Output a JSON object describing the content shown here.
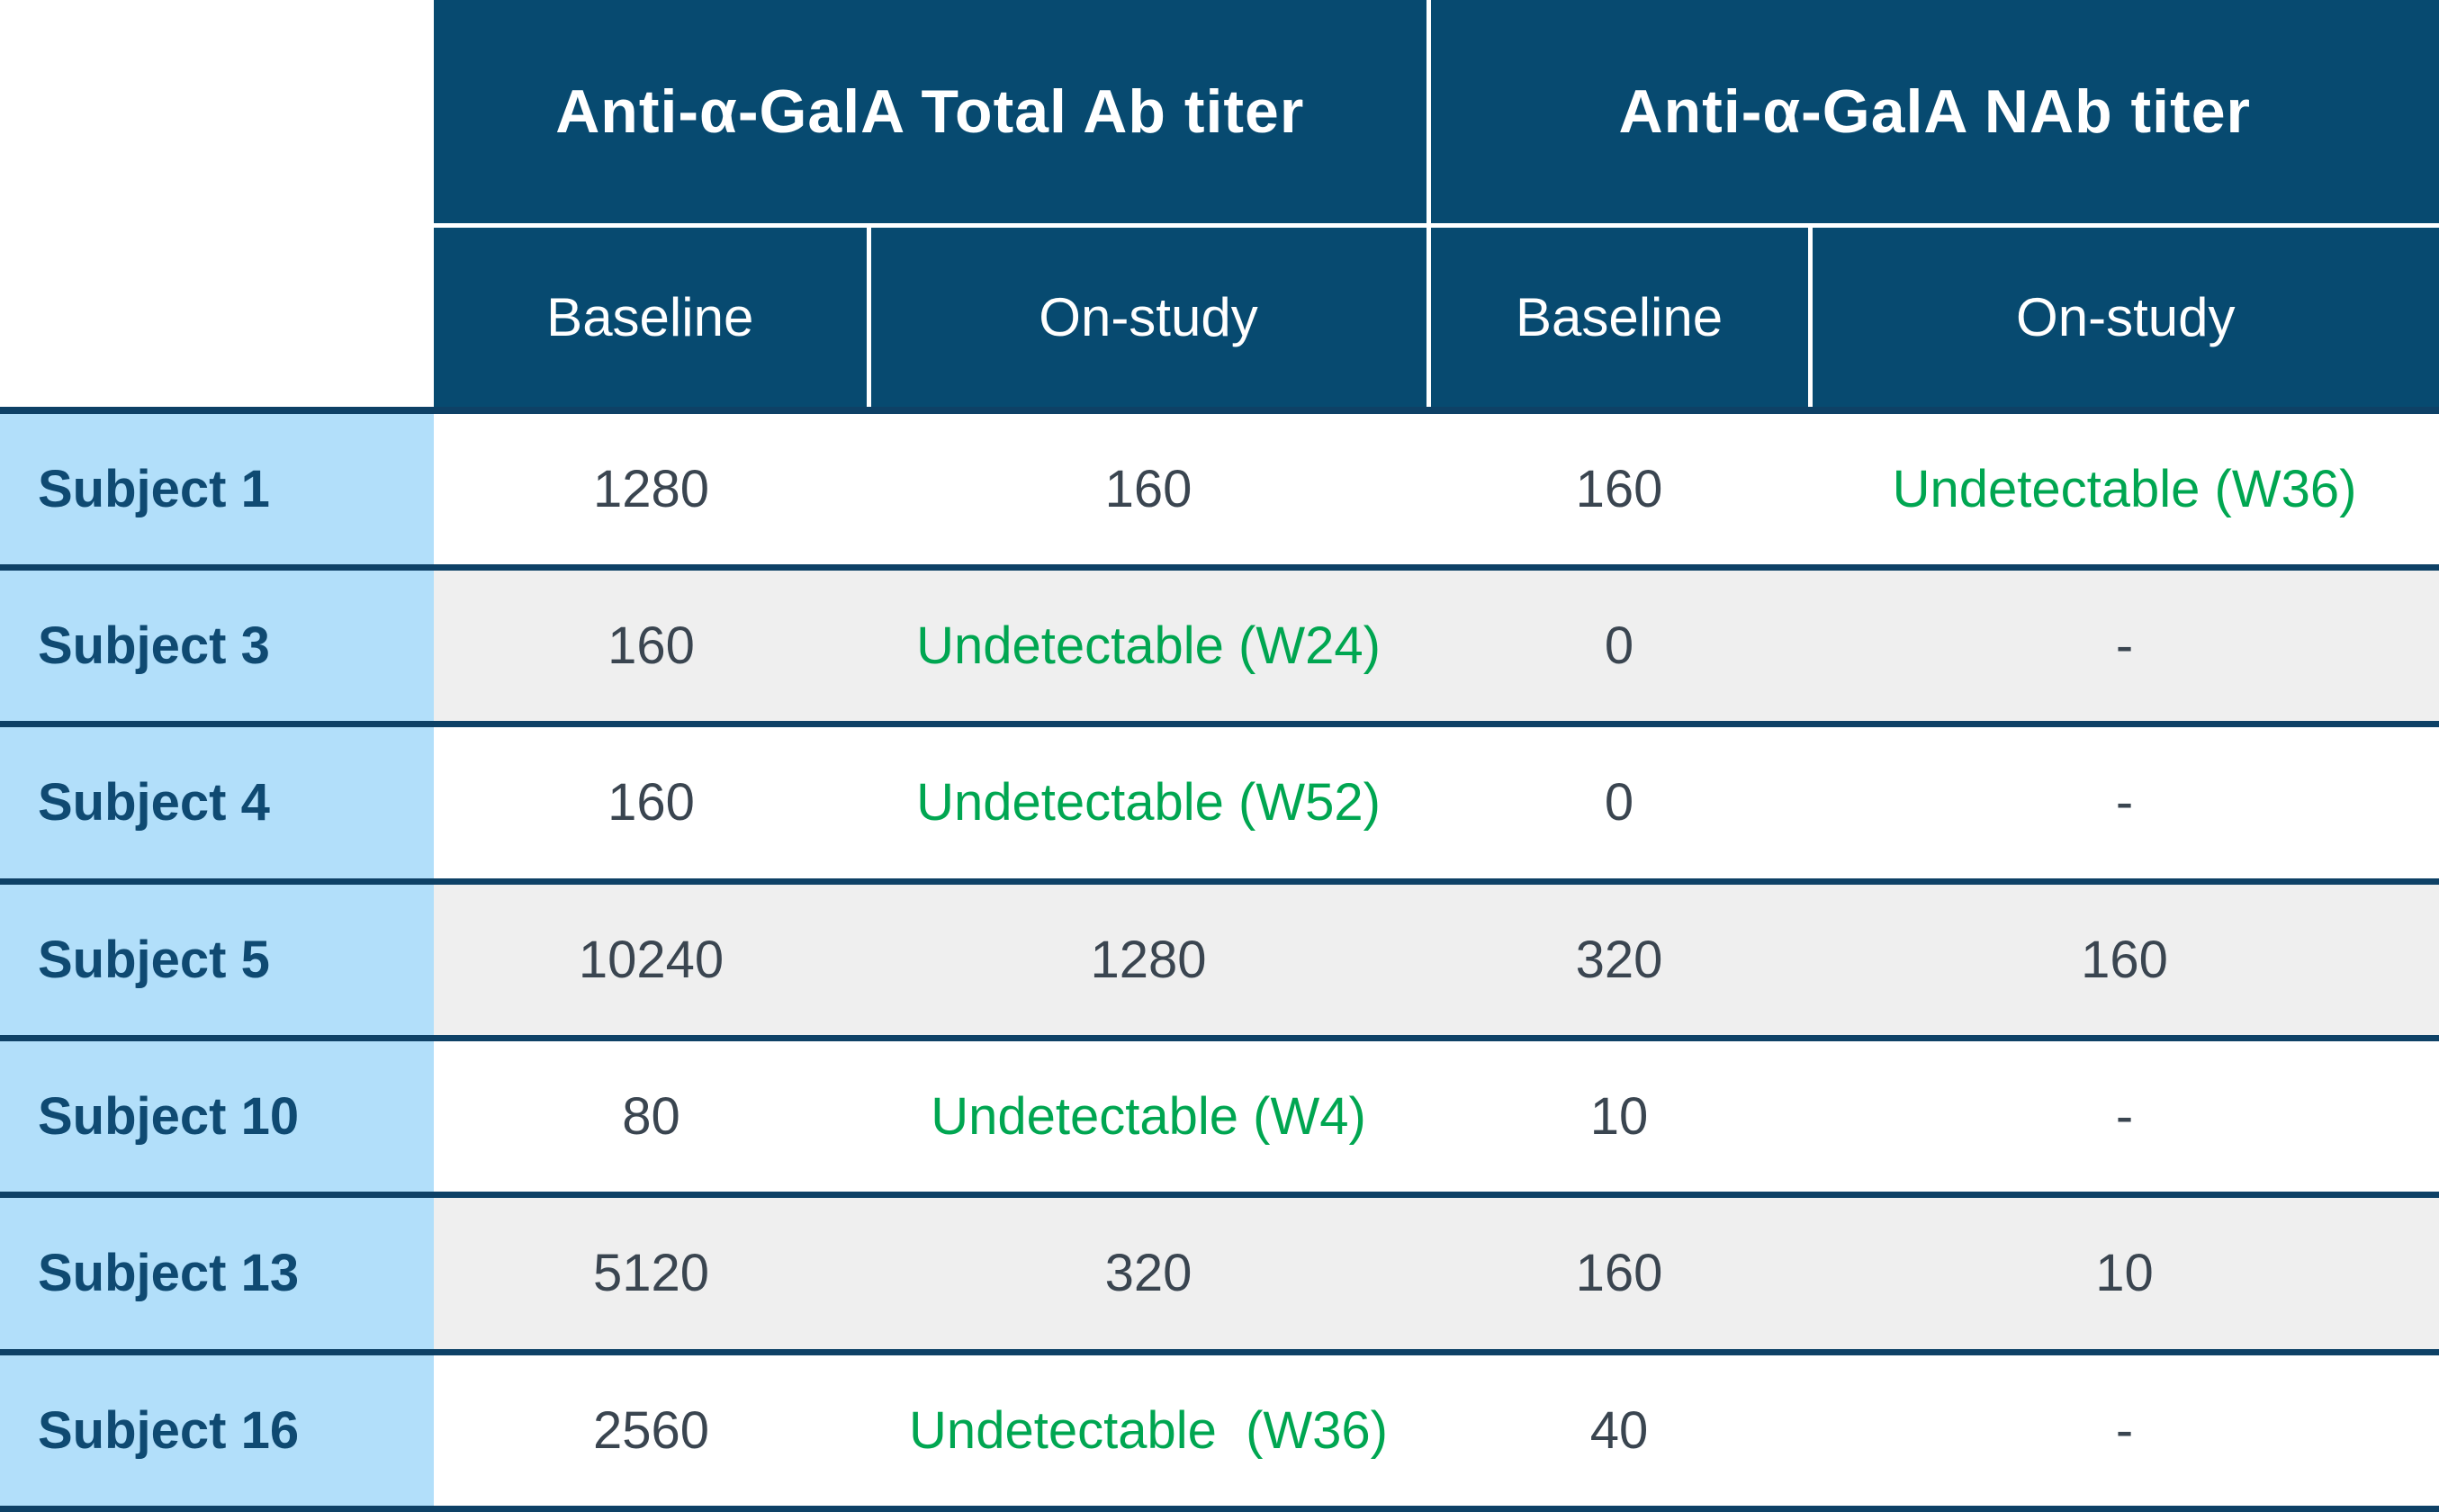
{
  "table": {
    "groups": [
      {
        "label": "Anti-α-GalA Total Ab titer"
      },
      {
        "label": "Anti-α-GalA NAb titer"
      }
    ],
    "subheaders": [
      "Baseline",
      "On-study",
      "Baseline",
      "On-study"
    ],
    "rows": [
      {
        "subject": "Subject 1",
        "cells": [
          {
            "text": "1280",
            "green": false
          },
          {
            "text": "160",
            "green": false
          },
          {
            "text": "160",
            "green": false
          },
          {
            "text": "Undetectable (W36)",
            "green": true
          }
        ]
      },
      {
        "subject": "Subject 3",
        "cells": [
          {
            "text": "160",
            "green": false
          },
          {
            "text": "Undetectable (W24)",
            "green": true
          },
          {
            "text": "0",
            "green": false
          },
          {
            "text": "-",
            "green": false
          }
        ]
      },
      {
        "subject": "Subject 4",
        "cells": [
          {
            "text": "160",
            "green": false
          },
          {
            "text": "Undetectable (W52)",
            "green": true
          },
          {
            "text": "0",
            "green": false
          },
          {
            "text": "-",
            "green": false
          }
        ]
      },
      {
        "subject": "Subject 5",
        "cells": [
          {
            "text": "10240",
            "green": false
          },
          {
            "text": "1280",
            "green": false
          },
          {
            "text": "320",
            "green": false
          },
          {
            "text": "160",
            "green": false
          }
        ]
      },
      {
        "subject": "Subject 10",
        "cells": [
          {
            "text": "80",
            "green": false
          },
          {
            "text": "Undetectable (W4)",
            "green": true
          },
          {
            "text": "10",
            "green": false
          },
          {
            "text": "-",
            "green": false
          }
        ]
      },
      {
        "subject": "Subject 13",
        "cells": [
          {
            "text": "5120",
            "green": false
          },
          {
            "text": "320",
            "green": false
          },
          {
            "text": "160",
            "green": false
          },
          {
            "text": "10",
            "green": false
          }
        ]
      },
      {
        "subject": "Subject 16",
        "cells": [
          {
            "text": "2560",
            "green": false
          },
          {
            "text": "Undetectable  (W36)",
            "green": true
          },
          {
            "text": "40",
            "green": false
          },
          {
            "text": "-",
            "green": false
          }
        ]
      }
    ]
  },
  "colors": {
    "header_bg": "#074A70",
    "subject_bg": "#B2DFFA",
    "separator": "#0E4166",
    "alt_row": "#EFEFEF",
    "row_bg": "#FFFFFF",
    "value_text": "#3A4550",
    "subject_text": "#0F4A72",
    "header_text": "#FFFFFF",
    "green": "#00A651",
    "divider_white": "#FFFFFF"
  }
}
